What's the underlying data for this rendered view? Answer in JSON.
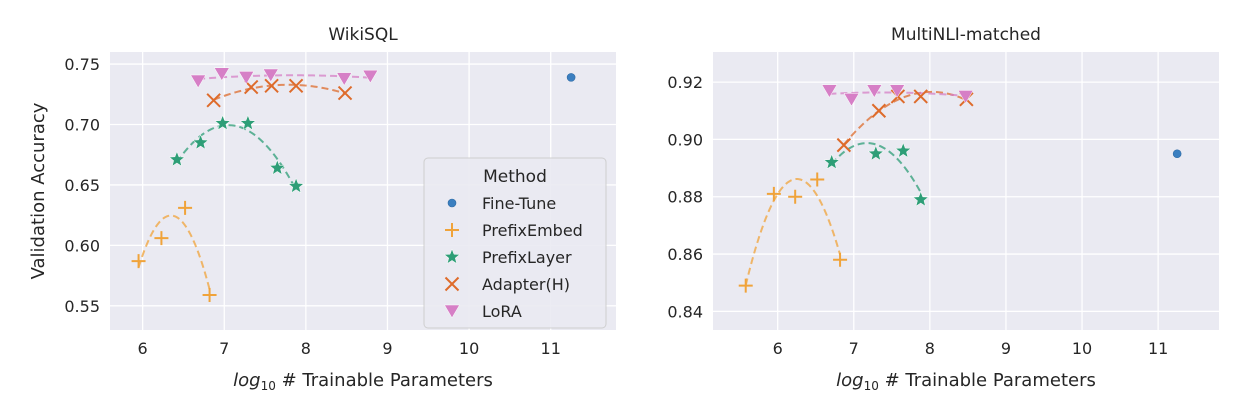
{
  "chart_data": [
    {
      "type": "scatter",
      "title": "WikiSQL",
      "xlabel_prefix": "log",
      "xlabel_sub": "10",
      "xlabel_rest": " # Trainable Parameters",
      "ylabel": "Validation Accuracy",
      "xlim": [
        5.6,
        11.8
      ],
      "ylim": [
        0.53,
        0.76
      ],
      "xticks": [
        6,
        7,
        8,
        9,
        10,
        11
      ],
      "xtick_labels": [
        "6",
        "7",
        "8",
        "9",
        "10",
        "11"
      ],
      "yticks": [
        0.55,
        0.6,
        0.65,
        0.7,
        0.75
      ],
      "ytick_labels": [
        "0.55",
        "0.60",
        "0.65",
        "0.70",
        "0.75"
      ],
      "grid": true,
      "legend": {
        "placement": "lower-right",
        "title": "Method",
        "entries": [
          "Fine-Tune",
          "PrefixEmbed",
          "PrefixLayer",
          "Adapter(H)",
          "LoRA"
        ]
      },
      "series": [
        {
          "name": "Fine-Tune",
          "marker": "circle",
          "color": "#3b7fc0",
          "trend": false,
          "points": [
            [
              11.25,
              0.739
            ]
          ]
        },
        {
          "name": "PrefixEmbed",
          "marker": "plus",
          "color": "#f0a33a",
          "trend": true,
          "points": [
            [
              5.95,
              0.587
            ],
            [
              6.23,
              0.606
            ],
            [
              6.52,
              0.631
            ],
            [
              6.82,
              0.559
            ]
          ]
        },
        {
          "name": "PrefixLayer",
          "marker": "star",
          "color": "#2e9e77",
          "trend": true,
          "points": [
            [
              6.42,
              0.671
            ],
            [
              6.71,
              0.685
            ],
            [
              6.98,
              0.701
            ],
            [
              7.29,
              0.701
            ],
            [
              7.65,
              0.664
            ],
            [
              7.88,
              0.649
            ]
          ]
        },
        {
          "name": "Adapter(H)",
          "marker": "x",
          "color": "#de6b2b",
          "trend": true,
          "points": [
            [
              6.87,
              0.72
            ],
            [
              7.33,
              0.731
            ],
            [
              7.58,
              0.732
            ],
            [
              7.88,
              0.732
            ],
            [
              8.48,
              0.726
            ]
          ]
        },
        {
          "name": "LoRA",
          "marker": "triangle-down",
          "color": "#d67fc6",
          "trend": true,
          "points": [
            [
              6.68,
              0.736
            ],
            [
              6.97,
              0.742
            ],
            [
              7.27,
              0.739
            ],
            [
              7.57,
              0.741
            ],
            [
              8.47,
              0.738
            ],
            [
              8.79,
              0.74
            ]
          ]
        }
      ]
    },
    {
      "type": "scatter",
      "title": "MultiNLI-matched",
      "xlabel_prefix": "log",
      "xlabel_sub": "10",
      "xlabel_rest": " # Trainable Parameters",
      "ylabel": "",
      "xlim": [
        5.15,
        11.8
      ],
      "ylim": [
        0.8335,
        0.9305
      ],
      "xticks": [
        6,
        7,
        8,
        9,
        10,
        11
      ],
      "xtick_labels": [
        "6",
        "7",
        "8",
        "9",
        "10",
        "11"
      ],
      "yticks": [
        0.84,
        0.86,
        0.88,
        0.9,
        0.92
      ],
      "ytick_labels": [
        "0.84",
        "0.86",
        "0.88",
        "0.90",
        "0.92"
      ],
      "grid": true,
      "series": [
        {
          "name": "Fine-Tune",
          "marker": "circle",
          "color": "#3b7fc0",
          "trend": false,
          "points": [
            [
              11.25,
              0.895
            ]
          ]
        },
        {
          "name": "PrefixEmbed",
          "marker": "plus",
          "color": "#f0a33a",
          "trend": true,
          "points": [
            [
              5.58,
              0.849
            ],
            [
              5.95,
              0.881
            ],
            [
              6.23,
              0.88
            ],
            [
              6.52,
              0.886
            ],
            [
              6.82,
              0.858
            ]
          ]
        },
        {
          "name": "PrefixLayer",
          "marker": "star",
          "color": "#2e9e77",
          "trend": true,
          "points": [
            [
              6.71,
              0.892
            ],
            [
              7.29,
              0.895
            ],
            [
              7.65,
              0.896
            ],
            [
              7.88,
              0.879
            ]
          ]
        },
        {
          "name": "Adapter(H)",
          "marker": "x",
          "color": "#de6b2b",
          "trend": true,
          "points": [
            [
              6.87,
              0.898
            ],
            [
              7.33,
              0.91
            ],
            [
              7.58,
              0.915
            ],
            [
              7.88,
              0.915
            ],
            [
              8.48,
              0.914
            ]
          ]
        },
        {
          "name": "LoRA",
          "marker": "triangle-down",
          "color": "#d67fc6",
          "trend": true,
          "points": [
            [
              6.68,
              0.917
            ],
            [
              6.97,
              0.914
            ],
            [
              7.27,
              0.917
            ],
            [
              7.57,
              0.917
            ],
            [
              8.47,
              0.915
            ]
          ]
        }
      ]
    }
  ]
}
